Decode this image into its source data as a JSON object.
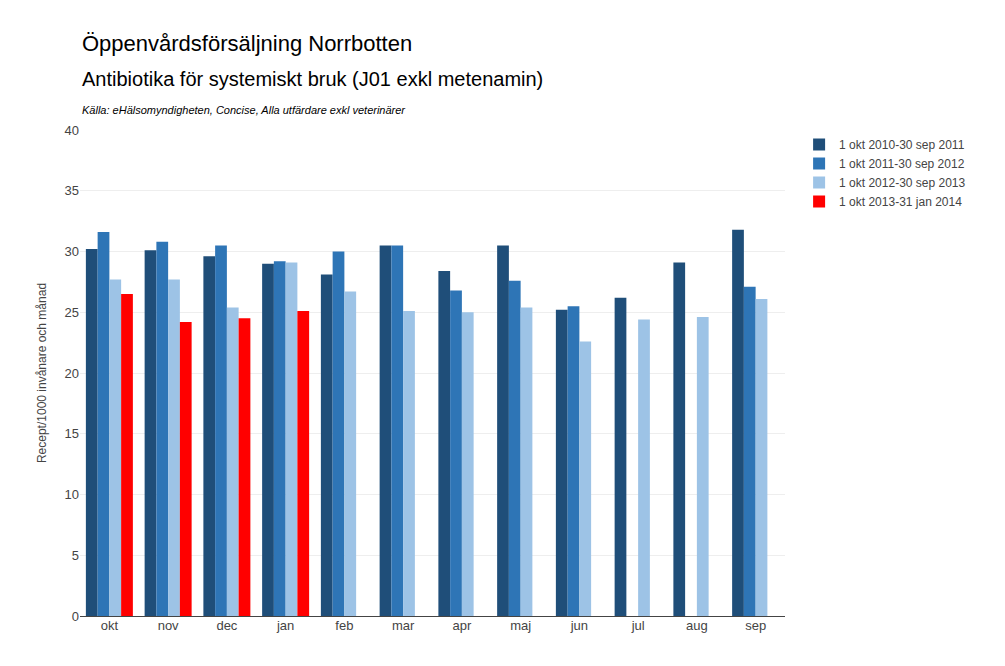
{
  "chart_data": {
    "type": "bar",
    "title": [
      "Öppenvårdsförsäljning Norrbotten",
      "Antibiotika för systemiskt bruk (J01 exkl metenamin)"
    ],
    "subtitle": "Källa: eHälsomyndigheten, Concise, Alla utfärdare exkl veterinärer",
    "y_label": "Recept/1000 invånare och månad",
    "categories": [
      "okt",
      "nov",
      "dec",
      "jan",
      "feb",
      "mar",
      "apr",
      "maj",
      "jun",
      "jul",
      "aug",
      "sep"
    ],
    "series": [
      {
        "name": "1 okt 2010-30 sep 2011",
        "color": "#1F4E79",
        "values": [
          30.2,
          30.1,
          29.6,
          29.0,
          28.1,
          30.5,
          28.4,
          30.5,
          25.2,
          26.2,
          29.1,
          31.8
        ]
      },
      {
        "name": "1 okt 2011-30 sep 2012",
        "color": "#2E75B6",
        "values": [
          31.6,
          30.8,
          30.5,
          29.2,
          30.0,
          30.5,
          26.8,
          27.6,
          25.5,
          null,
          null,
          27.1
        ]
      },
      {
        "name": "1 okt 2012-30 sep 2013",
        "color": "#9DC3E6",
        "values": [
          27.7,
          27.7,
          25.4,
          29.1,
          26.7,
          25.1,
          25.0,
          25.4,
          22.6,
          24.4,
          24.6,
          26.1
        ]
      },
      {
        "name": "1 okt 2013-31 jan 2014",
        "color": "#FF0000",
        "values": [
          26.5,
          24.2,
          24.5,
          25.1,
          null,
          null,
          null,
          null,
          null,
          null,
          null,
          null
        ]
      }
    ],
    "ylim": [
      0,
      40
    ],
    "yticks": [
      0,
      5,
      10,
      15,
      20,
      25,
      30,
      35,
      40
    ],
    "grid": true,
    "legend": "right"
  }
}
